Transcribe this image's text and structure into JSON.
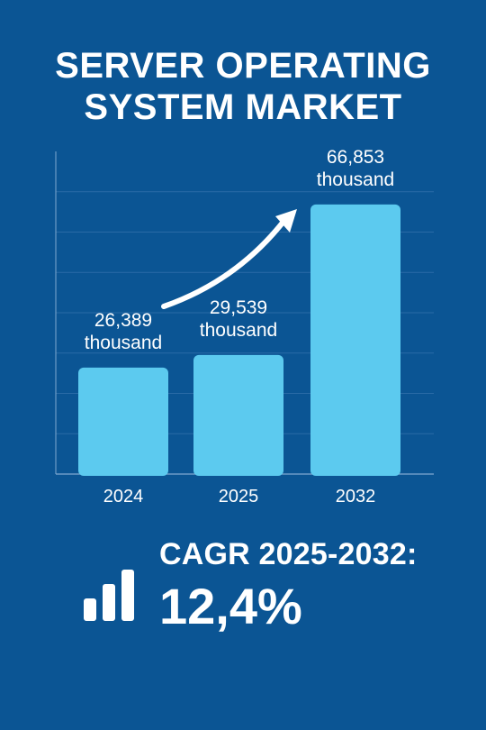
{
  "title_lines": [
    "SERVER OPERATING",
    "SYSTEM MARKET"
  ],
  "chart_data": {
    "type": "bar",
    "categories": [
      "2024",
      "2025",
      "2032"
    ],
    "values": [
      26389,
      29539,
      66853
    ],
    "value_labels": [
      [
        "26,389",
        "thousand"
      ],
      [
        "29,539",
        "thousand"
      ],
      [
        "66,853",
        "thousand"
      ]
    ],
    "ylim": [
      0,
      80000
    ],
    "grid": true,
    "bar_color": "#5ccaef",
    "annotation": "upward-trend-arrow"
  },
  "cagr": {
    "label": "CAGR 2025-2032:",
    "value": "12,4%",
    "icon": "bar-chart-icon"
  },
  "colors": {
    "background": "#0b5594",
    "bar": "#5ccaef",
    "text": "#ffffff"
  }
}
